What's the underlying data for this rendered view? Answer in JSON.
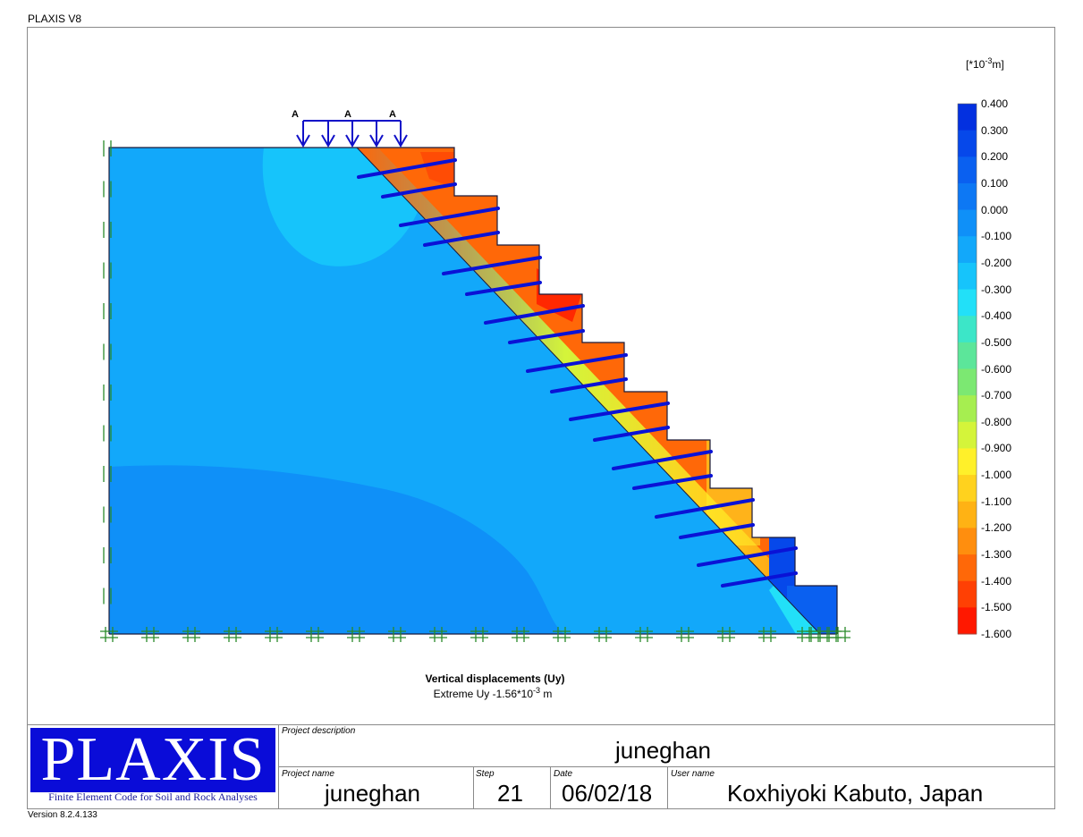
{
  "app": {
    "title": "PLAXIS V8",
    "version": "Version 8.2.4.133"
  },
  "plot": {
    "units": {
      "prefix": "[*10",
      "exp": "-3",
      "suffix": "m]"
    },
    "load_labels": [
      "A",
      "A",
      "A"
    ],
    "caption": "Vertical displacements (Uy)",
    "extreme": {
      "prefix": "Extreme Uy -1.56*10",
      "exp": "-3",
      "suffix": " m"
    }
  },
  "legend": {
    "labels": [
      "0.400",
      "0.300",
      "0.200",
      "0.100",
      "0.000",
      "-0.100",
      "-0.200",
      "-0.300",
      "-0.400",
      "-0.500",
      "-0.600",
      "-0.700",
      "-0.800",
      "-0.900",
      "-1.000",
      "-1.100",
      "-1.200",
      "-1.300",
      "-1.400",
      "-1.500",
      "-1.600"
    ],
    "colors": [
      "#0330e0",
      "#0648ea",
      "#0a60f0",
      "#0d78f4",
      "#0f90f8",
      "#12a8fa",
      "#16c4fb",
      "#22e0f8",
      "#3ce6c8",
      "#5ce69a",
      "#7ce872",
      "#a6ee50",
      "#d4f43a",
      "#fff02a",
      "#ffd21e",
      "#ffb214",
      "#ff8e0e",
      "#ff6808",
      "#ff4004",
      "#ff1800"
    ]
  },
  "title_block": {
    "logo_text": "PLAXIS",
    "logo_subtitle": "Finite Element Code for Soil and Rock Analyses",
    "project_description": {
      "label": "Project description",
      "value": "juneghan"
    },
    "project_name": {
      "label": "Project name",
      "value": "juneghan"
    },
    "step": {
      "label": "Step",
      "value": "21"
    },
    "date": {
      "label": "Date",
      "value": "06/02/18"
    },
    "user_name": {
      "label": "User name",
      "value": "Koxhiyoki Kabuto, Japan"
    }
  }
}
